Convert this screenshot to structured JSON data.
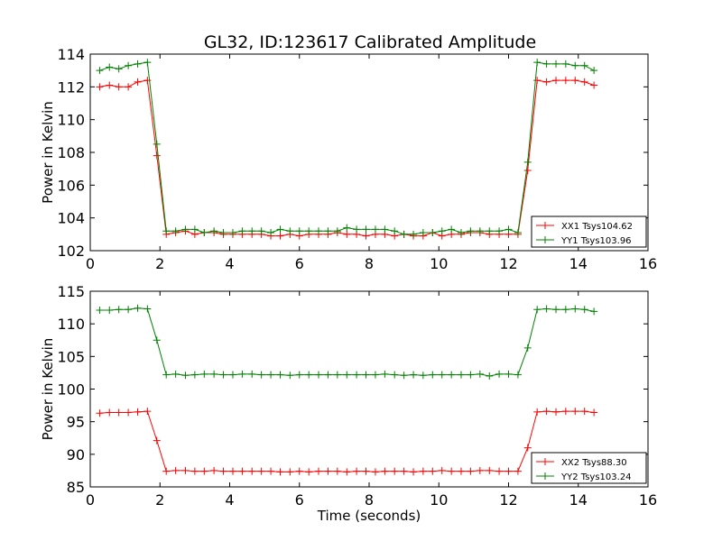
{
  "chart_data": [
    {
      "type": "line",
      "title": "GL32, ID:123617 Calibrated Amplitude",
      "xlabel": "",
      "ylabel": "Power in Kelvin",
      "xlim": [
        0,
        16
      ],
      "ylim": [
        102,
        114
      ],
      "xticks": [
        "0",
        "2",
        "4",
        "6",
        "8",
        "10",
        "12",
        "14",
        "16"
      ],
      "yticks": [
        "102",
        "104",
        "106",
        "108",
        "110",
        "112",
        "114"
      ],
      "grid": false,
      "legend_position": "lower-right",
      "x": [
        0.27,
        0.55,
        0.82,
        1.09,
        1.36,
        1.64,
        1.91,
        2.18,
        2.45,
        2.73,
        3.0,
        3.27,
        3.55,
        3.82,
        4.09,
        4.36,
        4.64,
        4.91,
        5.18,
        5.45,
        5.73,
        6.0,
        6.27,
        6.55,
        6.82,
        7.09,
        7.36,
        7.64,
        7.91,
        8.18,
        8.45,
        8.73,
        9.0,
        9.27,
        9.55,
        9.82,
        10.09,
        10.36,
        10.64,
        10.91,
        11.18,
        11.45,
        11.73,
        12.0,
        12.27,
        12.55,
        12.82,
        13.09,
        13.36,
        13.64,
        13.91,
        14.18,
        14.45
      ],
      "series": [
        {
          "name": "XX1 Tsys104.62",
          "color": "#ff0000",
          "values": [
            112.0,
            112.1,
            112.0,
            112.0,
            112.3,
            112.4,
            107.8,
            103.0,
            103.1,
            103.2,
            103.0,
            103.1,
            103.1,
            103.0,
            103.0,
            103.0,
            103.0,
            103.0,
            102.9,
            102.9,
            103.0,
            102.9,
            103.0,
            103.0,
            103.0,
            103.1,
            103.0,
            103.0,
            102.9,
            103.0,
            103.0,
            102.9,
            103.0,
            102.9,
            102.9,
            103.1,
            102.9,
            103.0,
            103.0,
            103.1,
            103.1,
            103.0,
            103.0,
            103.0,
            103.0,
            106.9,
            112.4,
            112.3,
            112.4,
            112.4,
            112.4,
            112.3,
            112.1
          ]
        },
        {
          "name": "YY1 Tsys103.96",
          "color": "#008000",
          "values": [
            113.0,
            113.2,
            113.1,
            113.3,
            113.4,
            113.5,
            108.5,
            103.2,
            103.2,
            103.3,
            103.3,
            103.1,
            103.2,
            103.1,
            103.1,
            103.2,
            103.2,
            103.2,
            103.1,
            103.3,
            103.2,
            103.2,
            103.2,
            103.2,
            103.2,
            103.2,
            103.4,
            103.3,
            103.3,
            103.3,
            103.3,
            103.2,
            103.0,
            103.0,
            103.1,
            103.1,
            103.2,
            103.3,
            103.1,
            103.2,
            103.2,
            103.2,
            103.2,
            103.3,
            103.1,
            107.4,
            113.5,
            113.4,
            113.4,
            113.4,
            113.3,
            113.3,
            113.0
          ]
        }
      ]
    },
    {
      "type": "line",
      "title": "",
      "xlabel": "Time (seconds)",
      "ylabel": "Power in Kelvin",
      "xlim": [
        0,
        16
      ],
      "ylim": [
        85,
        115
      ],
      "xticks": [
        "0",
        "2",
        "4",
        "6",
        "8",
        "10",
        "12",
        "14",
        "16"
      ],
      "yticks": [
        "85",
        "90",
        "95",
        "100",
        "105",
        "110",
        "115"
      ],
      "grid": false,
      "legend_position": "lower-right",
      "x": [
        0.27,
        0.55,
        0.82,
        1.09,
        1.36,
        1.64,
        1.91,
        2.18,
        2.45,
        2.73,
        3.0,
        3.27,
        3.55,
        3.82,
        4.09,
        4.36,
        4.64,
        4.91,
        5.18,
        5.45,
        5.73,
        6.0,
        6.27,
        6.55,
        6.82,
        7.09,
        7.36,
        7.64,
        7.91,
        8.18,
        8.45,
        8.73,
        9.0,
        9.27,
        9.55,
        9.82,
        10.09,
        10.36,
        10.64,
        10.91,
        11.18,
        11.45,
        11.73,
        12.0,
        12.27,
        12.55,
        12.82,
        13.09,
        13.36,
        13.64,
        13.91,
        14.18,
        14.45
      ],
      "series": [
        {
          "name": "XX2 Tsys88.30",
          "color": "#ff0000",
          "values": [
            96.3,
            96.4,
            96.4,
            96.4,
            96.5,
            96.6,
            92.1,
            87.4,
            87.5,
            87.5,
            87.4,
            87.4,
            87.5,
            87.4,
            87.4,
            87.4,
            87.4,
            87.4,
            87.4,
            87.3,
            87.3,
            87.4,
            87.3,
            87.4,
            87.4,
            87.4,
            87.3,
            87.4,
            87.4,
            87.3,
            87.4,
            87.4,
            87.4,
            87.3,
            87.4,
            87.4,
            87.5,
            87.4,
            87.4,
            87.4,
            87.5,
            87.5,
            87.4,
            87.4,
            87.4,
            91.0,
            96.5,
            96.6,
            96.5,
            96.6,
            96.6,
            96.6,
            96.4
          ]
        },
        {
          "name": "YY2 Tsys103.24",
          "color": "#008000",
          "values": [
            112.1,
            112.1,
            112.2,
            112.2,
            112.4,
            112.3,
            107.5,
            102.2,
            102.3,
            102.1,
            102.2,
            102.3,
            102.3,
            102.2,
            102.2,
            102.3,
            102.3,
            102.2,
            102.2,
            102.2,
            102.1,
            102.2,
            102.2,
            102.2,
            102.2,
            102.2,
            102.2,
            102.2,
            102.2,
            102.2,
            102.3,
            102.2,
            102.1,
            102.2,
            102.1,
            102.2,
            102.2,
            102.2,
            102.2,
            102.2,
            102.3,
            102.0,
            102.3,
            102.3,
            102.2,
            106.3,
            112.2,
            112.3,
            112.2,
            112.2,
            112.3,
            112.2,
            111.9
          ]
        }
      ]
    }
  ]
}
